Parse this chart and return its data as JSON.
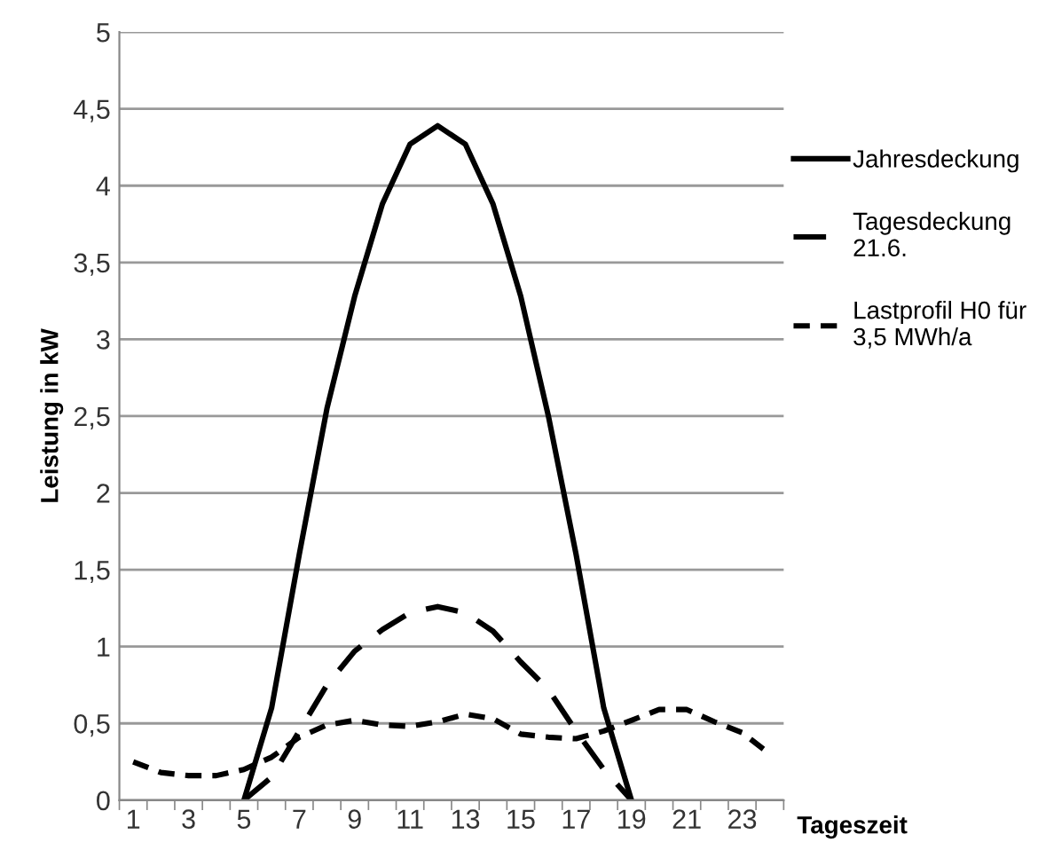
{
  "chart_data": {
    "type": "line",
    "xlabel": "Tageszeit",
    "ylabel": "Leistung in kW",
    "categories": [
      "1",
      null,
      "3",
      null,
      "5",
      null,
      "7",
      null,
      "9",
      null,
      "11",
      null,
      "13",
      null,
      "15",
      null,
      "17",
      null,
      "19",
      null,
      "21",
      null,
      "23",
      null
    ],
    "series": [
      {
        "name": "Jahresdeckung",
        "color": "#000000",
        "line_style": "solid",
        "values": [
          null,
          null,
          null,
          null,
          0,
          0.6,
          1.6,
          2.55,
          3.28,
          3.88,
          4.27,
          4.39,
          4.27,
          3.88,
          3.28,
          2.5,
          1.6,
          0.6,
          0,
          null,
          null,
          null,
          null,
          null
        ]
      },
      {
        "name": "Tagesdeckung\n21.6.",
        "color": "#000000",
        "line_style": "dashed",
        "values": [
          null,
          null,
          null,
          null,
          0,
          0.15,
          0.45,
          0.75,
          0.97,
          1.11,
          1.22,
          1.26,
          1.22,
          1.1,
          0.9,
          0.72,
          0.45,
          0.2,
          0,
          null,
          null,
          null,
          null,
          null
        ]
      },
      {
        "name": "Lastprofil H0 für\n3,5 MWh/a",
        "color": "#000000",
        "line_style": "dotted",
        "values": [
          0.25,
          0.18,
          0.16,
          0.16,
          0.2,
          0.28,
          0.41,
          0.49,
          0.52,
          0.49,
          0.48,
          0.51,
          0.56,
          0.53,
          0.43,
          0.41,
          0.4,
          0.45,
          0.52,
          0.59,
          0.59,
          0.51,
          0.44,
          0.3
        ]
      }
    ],
    "ylim": [
      0,
      5
    ],
    "yticks": [
      0,
      {
        "value": 0.5,
        "label": "0,5"
      },
      1,
      {
        "value": 1.5,
        "label": "1,5"
      },
      2,
      {
        "value": 2.5,
        "label": "2,5"
      },
      3,
      {
        "value": 3.5,
        "label": "3,5"
      },
      4,
      {
        "value": 4.5,
        "label": "4,5"
      },
      5
    ],
    "grid": "y",
    "legend": "right",
    "marker": "none"
  }
}
